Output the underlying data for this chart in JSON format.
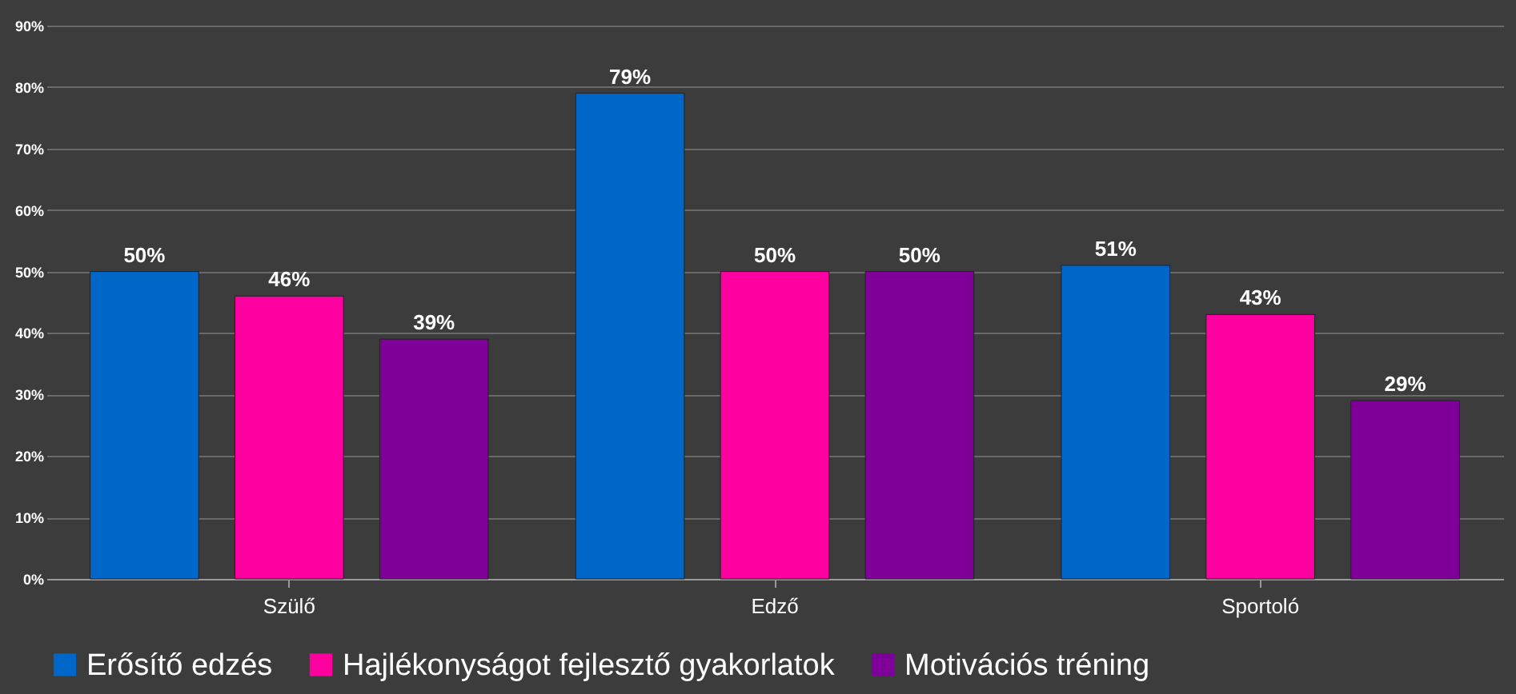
{
  "chart_data": {
    "type": "bar",
    "categories": [
      "Szülő",
      "Edző",
      "Sportoló"
    ],
    "series": [
      {
        "name": "Erősítő edzés",
        "color": "#0066c8",
        "values": [
          50,
          79,
          51
        ],
        "value_labels": [
          "50%",
          "79%",
          "51%"
        ]
      },
      {
        "name": "Hajlékonyságot fejlesztő gyakorlatok",
        "color": "#ff00a0",
        "values": [
          46,
          50,
          43
        ],
        "value_labels": [
          "46%",
          "50%",
          "43%"
        ]
      },
      {
        "name": "Motivációs tréning",
        "color": "#7f0099",
        "values": [
          39,
          50,
          29
        ],
        "value_labels": [
          "39%",
          "50%",
          "29%"
        ]
      }
    ],
    "ylim": [
      0,
      90
    ],
    "yticks": [
      {
        "value": 0,
        "label": "0%"
      },
      {
        "value": 10,
        "label": "10%"
      },
      {
        "value": 20,
        "label": "20%"
      },
      {
        "value": 30,
        "label": "30%"
      },
      {
        "value": 40,
        "label": "40%"
      },
      {
        "value": 50,
        "label": "50%"
      },
      {
        "value": 60,
        "label": "60%"
      },
      {
        "value": 70,
        "label": "70%"
      },
      {
        "value": 80,
        "label": "80%"
      },
      {
        "value": 90,
        "label": "90%"
      }
    ],
    "grid": "y",
    "legend": "bottom"
  }
}
